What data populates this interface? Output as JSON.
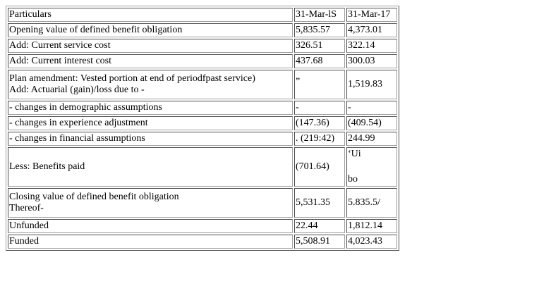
{
  "table": {
    "header": {
      "particulars": "Particulars",
      "col_2018": "31-Mar-lS",
      "col_2017": "31-Mar-17"
    },
    "rows": [
      {
        "label": "Opening value of defined benefit obligation",
        "v2018": "5,835.57",
        "v2017": "4,373.01"
      },
      {
        "label": "Add: Current service cost",
        "v2018": "326.51",
        "v2017": "322.14"
      },
      {
        "label": "Add: Current interest cost",
        "v2018": "437.68",
        "v2017": "300.03"
      },
      {
        "label_line1": "Plan amendment: Vested portion at end of periodfpast service)",
        "label_line2": "Add: Actuarial (gain)/loss due to -",
        "v2018": "„",
        "v2017": "1,519.83"
      },
      {
        "label": "- changes in demographic assumptions",
        "v2018": "-",
        "v2017": "-"
      },
      {
        "label": "- changes in experience adjustment",
        "v2018": "(147.36)",
        "v2017": "(409.54)"
      },
      {
        "label": "- changes in financial assumptions",
        "v2018": ". (219:42)",
        "v2017": "244.99"
      },
      {
        "label": "Less: Benefits paid",
        "v2018": "(701.64)",
        "v2017_top": "‘Ui",
        "v2017_bottom": "bo"
      },
      {
        "label_line1": "Closing value of defined benefit obligation",
        "label_line2": "Thereof-",
        "v2018": "5,531.35",
        "v2017": "5.835.5/"
      },
      {
        "label": "Unfunded",
        "v2018": "22.44",
        "v2017": "1,812.14"
      },
      {
        "label": "Funded",
        "v2018": "5,508.91",
        "v2017": "4,023.43"
      }
    ]
  }
}
